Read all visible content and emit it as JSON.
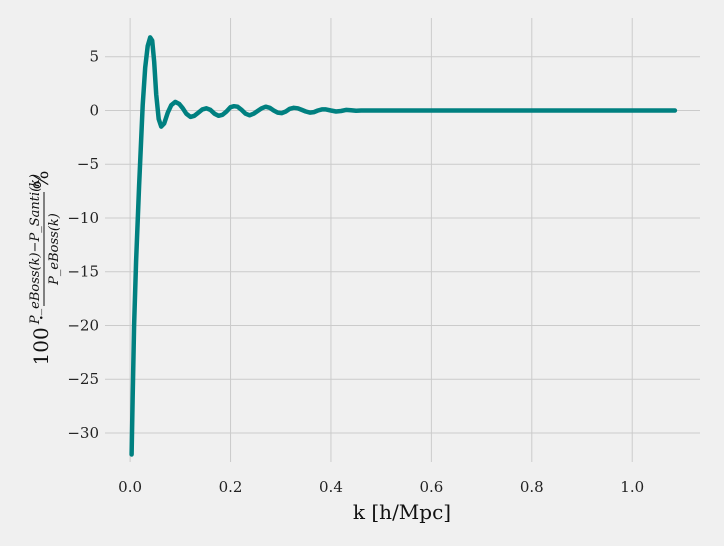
{
  "chart_data": {
    "type": "line",
    "xlabel": "k [h/Mpc]",
    "ylabel_prefix": "100 ·",
    "ylabel_numerator": "P_eBoss(k)−P_Santi(k)",
    "ylabel_denominator": "P_eBoss(k)",
    "ylabel_suffix": "%",
    "xlim": [
      -0.05,
      1.135
    ],
    "ylim": [
      -32.7,
      8.6
    ],
    "xticks": [
      0.0,
      0.2,
      0.4,
      0.6,
      0.8,
      1.0
    ],
    "xtick_labels": [
      "0.0",
      "0.2",
      "0.4",
      "0.6",
      "0.8",
      "1.0"
    ],
    "yticks": [
      5,
      0,
      -5,
      -10,
      -15,
      -20,
      -25,
      -30
    ],
    "ytick_labels": [
      "5",
      "0",
      "−5",
      "−10",
      "−15",
      "−20",
      "−25",
      "−30"
    ],
    "grid": true,
    "series": [
      {
        "color": "#008080",
        "x": [
          0.003,
          0.005,
          0.008,
          0.012,
          0.018,
          0.025,
          0.03,
          0.035,
          0.04,
          0.044,
          0.048,
          0.052,
          0.057,
          0.062,
          0.068,
          0.075,
          0.082,
          0.09,
          0.098,
          0.105,
          0.112,
          0.12,
          0.128,
          0.136,
          0.144,
          0.152,
          0.16,
          0.168,
          0.176,
          0.184,
          0.192,
          0.2,
          0.207,
          0.214,
          0.222,
          0.23,
          0.238,
          0.246,
          0.254,
          0.262,
          0.27,
          0.278,
          0.286,
          0.294,
          0.302,
          0.31,
          0.318,
          0.326,
          0.334,
          0.342,
          0.35,
          0.358,
          0.366,
          0.374,
          0.382,
          0.39,
          0.4,
          0.41,
          0.42,
          0.43,
          0.44,
          0.45,
          0.46,
          0.47,
          0.48,
          0.5,
          0.6,
          0.7,
          0.8,
          0.9,
          1.0,
          1.085
        ],
        "y": [
          -32.0,
          -27.0,
          -20.0,
          -14.0,
          -7.0,
          0.5,
          4.0,
          6.0,
          6.8,
          6.5,
          4.5,
          1.5,
          -0.8,
          -1.5,
          -1.2,
          -0.2,
          0.5,
          0.8,
          0.6,
          0.2,
          -0.3,
          -0.6,
          -0.5,
          -0.2,
          0.1,
          0.2,
          0.05,
          -0.3,
          -0.5,
          -0.4,
          -0.1,
          0.3,
          0.4,
          0.35,
          0.05,
          -0.3,
          -0.45,
          -0.3,
          -0.05,
          0.2,
          0.35,
          0.25,
          0.0,
          -0.2,
          -0.25,
          -0.1,
          0.15,
          0.25,
          0.2,
          0.05,
          -0.1,
          -0.2,
          -0.15,
          0.0,
          0.1,
          0.1,
          0.0,
          -0.1,
          -0.05,
          0.05,
          0.02,
          -0.02,
          0.0,
          0.0,
          0.0,
          0.0,
          0.0,
          0.0,
          0.0,
          0.0,
          0.0,
          0.0
        ]
      }
    ]
  }
}
